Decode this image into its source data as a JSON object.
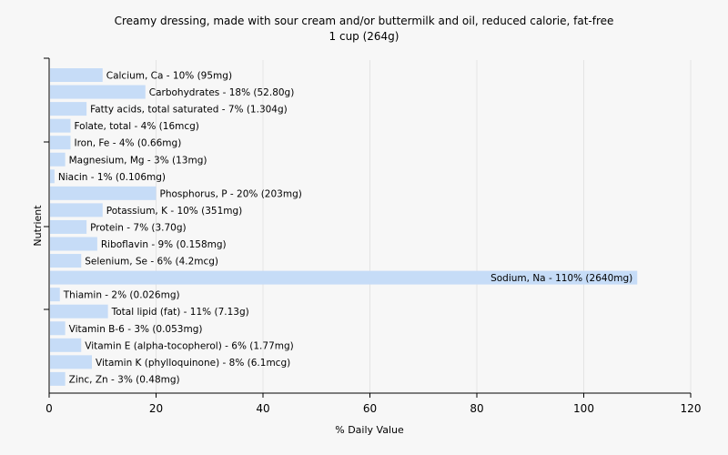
{
  "chart_data": {
    "type": "bar",
    "orientation": "horizontal",
    "title": "Creamy dressing, made with sour cream and/or buttermilk and oil, reduced calorie, fat-free",
    "subtitle": "1 cup (264g)",
    "xlabel": "% Daily Value",
    "ylabel": "Nutrient",
    "xlim": [
      0,
      120
    ],
    "xticks": [
      0,
      20,
      40,
      60,
      80,
      100,
      120
    ],
    "grid": true,
    "bar_color": "#c6dcf7",
    "categories": [
      "Calcium, Ca",
      "Carbohydrates",
      "Fatty acids, total saturated",
      "Folate, total",
      "Iron, Fe",
      "Magnesium, Mg",
      "Niacin",
      "Phosphorus, P",
      "Potassium, K",
      "Protein",
      "Riboflavin",
      "Selenium, Se",
      "Sodium, Na",
      "Thiamin",
      "Total lipid (fat)",
      "Vitamin B-6",
      "Vitamin E (alpha-tocopherol)",
      "Vitamin K (phylloquinone)",
      "Zinc, Zn"
    ],
    "values": [
      10,
      18,
      7,
      4,
      4,
      3,
      1,
      20,
      10,
      7,
      9,
      6,
      110,
      2,
      11,
      3,
      6,
      8,
      3
    ],
    "labels": [
      "Calcium, Ca - 10% (95mg)",
      "Carbohydrates - 18% (52.80g)",
      "Fatty acids, total saturated - 7% (1.304g)",
      "Folate, total - 4% (16mcg)",
      "Iron, Fe - 4% (0.66mg)",
      "Magnesium, Mg - 3% (13mg)",
      "Niacin - 1% (0.106mg)",
      "Phosphorus, P - 20% (203mg)",
      "Potassium, K - 10% (351mg)",
      "Protein - 7% (3.70g)",
      "Riboflavin - 9% (0.158mg)",
      "Selenium, Se - 6% (4.2mcg)",
      "Sodium, Na - 110% (2640mg)",
      "Thiamin - 2% (0.026mg)",
      "Total lipid (fat) - 11% (7.13g)",
      "Vitamin B-6 - 3% (0.053mg)",
      "Vitamin E (alpha-tocopherol) - 6% (1.77mg)",
      "Vitamin K (phylloquinone) - 8% (6.1mcg)",
      "Zinc, Zn - 3% (0.48mg)"
    ]
  }
}
